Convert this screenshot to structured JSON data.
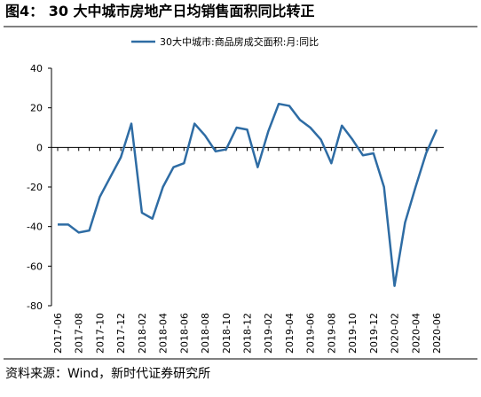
{
  "title": "图4： 30 大中城市房地产日均销售面积同比转正",
  "source": "资料来源：Wind，新时代证券研究所",
  "chart_data": {
    "type": "line",
    "categories": [
      "2017-06",
      null,
      "2017-08",
      null,
      "2017-10",
      null,
      "2017-12",
      null,
      "2018-02",
      null,
      "2018-04",
      null,
      "2018-06",
      null,
      "2018-08",
      null,
      "2018-10",
      null,
      "2018-12",
      null,
      "2019-02",
      null,
      "2019-04",
      null,
      "2019-06",
      null,
      "2019-08",
      null,
      "2019-10",
      null,
      "2019-12",
      null,
      "2020-02",
      null,
      "2020-04",
      null,
      "2020-06"
    ],
    "series": [
      {
        "name": "30大中城市:商品房成交面积:月:同比",
        "color": "#2e6ca4",
        "values": [
          -39,
          -39,
          -43,
          -42,
          -25,
          -15,
          -5,
          12,
          -33,
          -36,
          -20,
          -10,
          -8,
          12,
          6,
          -2,
          -1,
          10,
          9,
          -10,
          8,
          22,
          21,
          14,
          10,
          4,
          -8,
          11,
          4,
          -4,
          -3,
          -20,
          -70,
          -38,
          -20,
          -3,
          9
        ]
      }
    ],
    "ylim": [
      -80,
      40
    ],
    "yticks": [
      -80,
      -60,
      -40,
      -20,
      0,
      20,
      40
    ]
  }
}
